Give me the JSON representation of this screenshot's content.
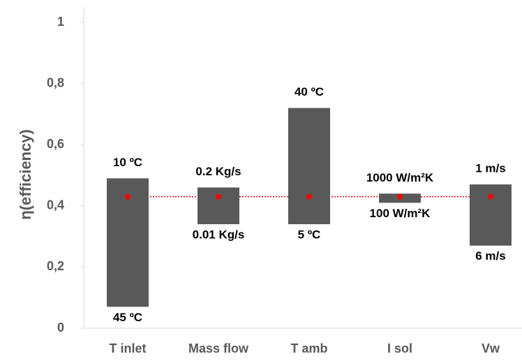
{
  "chart_data": {
    "type": "range-bar",
    "y_label": "η(efficiency)",
    "categories": [
      "T inlet",
      "Mass flow",
      "T amb",
      "I sol",
      "Vw"
    ],
    "low": [
      0.07,
      0.34,
      0.34,
      0.41,
      0.27
    ],
    "high": [
      0.49,
      0.46,
      0.72,
      0.44,
      0.47
    ],
    "high_labels": [
      "10 ºC",
      "0.2 Kg/s",
      "40 ºC",
      "1000 W/m²K",
      "1 m/s"
    ],
    "low_labels": [
      "45 ºC",
      "0.01 Kg/s",
      "5 ºC",
      "100 W/m²K",
      "6 m/s"
    ],
    "baseline": 0.43,
    "color": "#595959",
    "baseline_color": "#ff0000",
    "ylim": [
      0,
      1
    ],
    "yticks": [
      0,
      {
        "value": 0.2,
        "label": "0,2"
      },
      {
        "value": 0.4,
        "label": "0,4"
      },
      {
        "value": 0.6,
        "label": "0,6"
      },
      {
        "value": 0.8,
        "label": "0,8"
      },
      1
    ]
  }
}
